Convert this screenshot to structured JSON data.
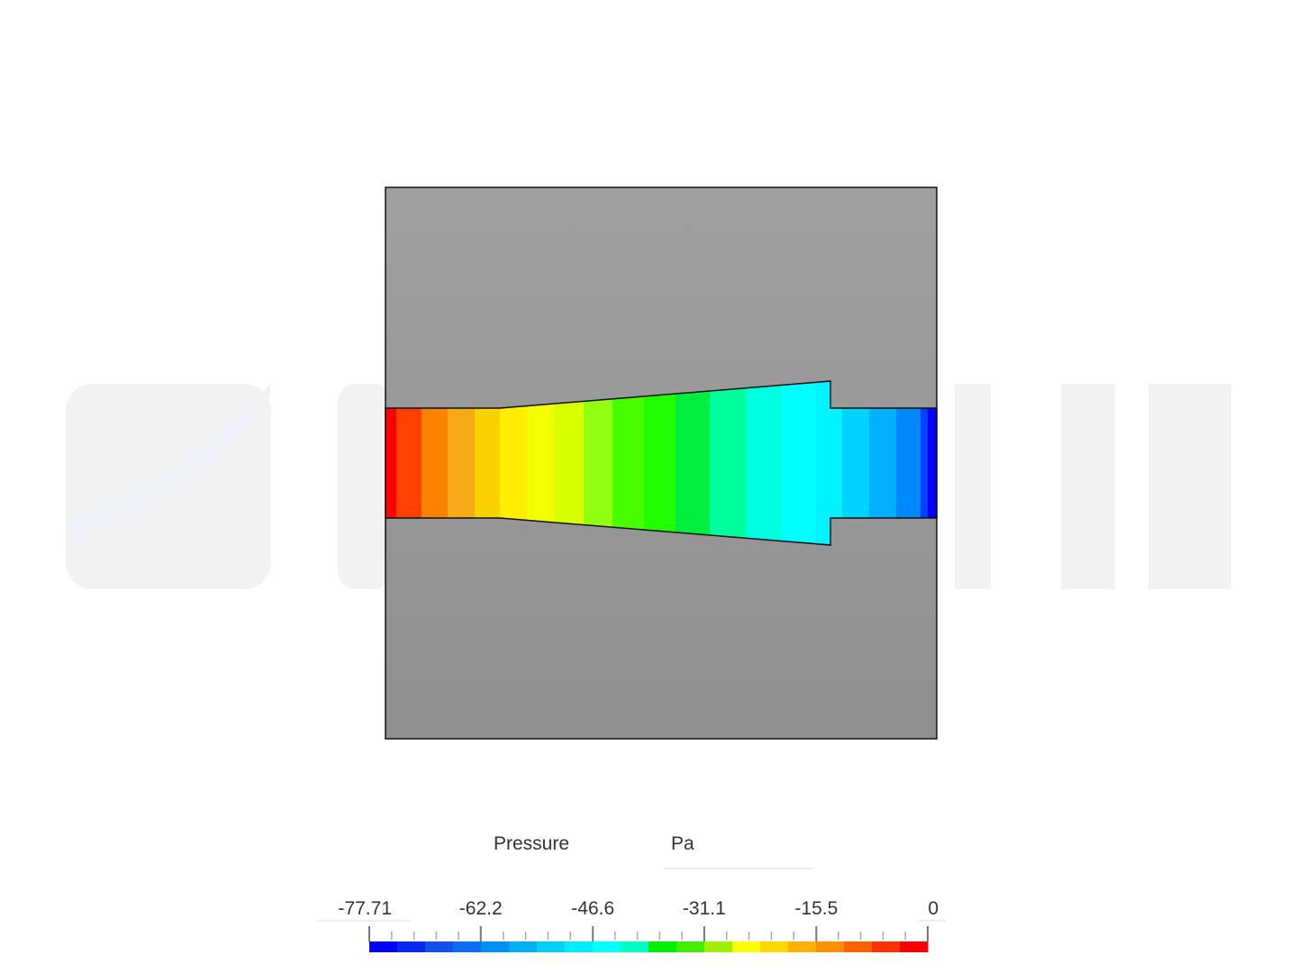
{
  "legend": {
    "title": "Pressure",
    "unit": "Pa",
    "ticks": [
      -77.71,
      -62.2,
      -46.6,
      -31.1,
      -15.5,
      0
    ]
  }
}
